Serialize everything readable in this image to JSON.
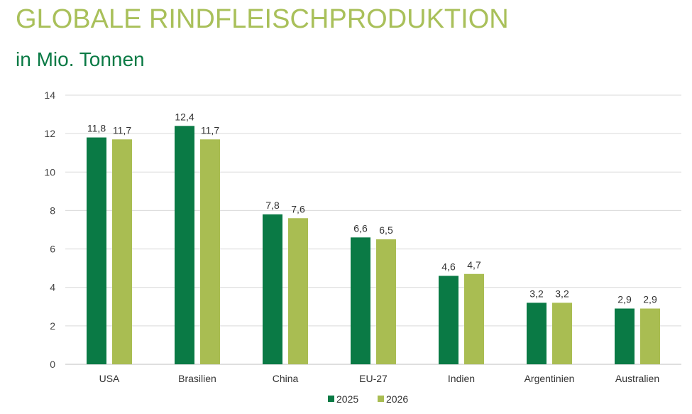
{
  "chart_data": {
    "type": "bar",
    "title": "GLOBALE RINDFLEISCHPRODUKTION",
    "subtitle": "in Mio. Tonnen",
    "categories": [
      "USA",
      "Brasilien",
      "China",
      "EU-27",
      "Indien",
      "Argentinien",
      "Australien"
    ],
    "series": [
      {
        "name": "2025",
        "color": "#0A7A45",
        "values": [
          11.8,
          12.4,
          7.8,
          6.6,
          4.6,
          3.2,
          2.9
        ],
        "labels": [
          "11,8",
          "12,4",
          "7,8",
          "6,6",
          "4,6",
          "3,2",
          "2,9"
        ]
      },
      {
        "name": "2026",
        "color": "#A9BD52",
        "values": [
          11.7,
          11.7,
          7.6,
          6.5,
          4.7,
          3.2,
          2.9
        ],
        "labels": [
          "11,7",
          "11,7",
          "7,6",
          "6,5",
          "4,7",
          "3,2",
          "2,9"
        ]
      }
    ],
    "ylim": [
      0,
      14
    ],
    "yticks": [
      "0",
      "2",
      "4",
      "6",
      "8",
      "10",
      "12",
      "14"
    ],
    "grid": true,
    "legend_position": "bottom"
  }
}
